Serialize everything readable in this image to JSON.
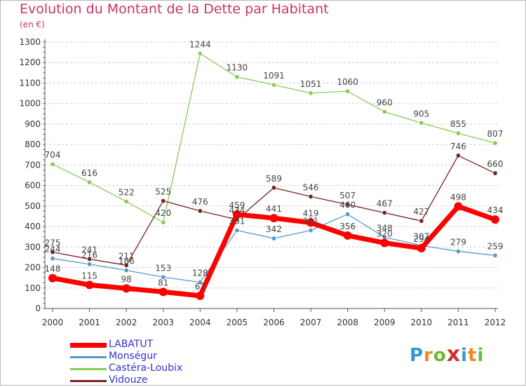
{
  "header": {
    "title": "Evolution du Montant de la Dette par Habitant",
    "subtitle": "(en €)"
  },
  "logo": {
    "letters": [
      "P",
      "r",
      "o",
      "x",
      "i",
      "t",
      "i"
    ],
    "colors": [
      "#3399cc",
      "#ee8822",
      "#66bb33",
      "#cc3333",
      "#3399cc",
      "#ee8822",
      "#66bb33"
    ]
  },
  "chart_data": {
    "type": "line",
    "title": "Evolution du Montant de la Dette par Habitant",
    "ylabel": "(en €)",
    "xlabel": "",
    "x": [
      "2000",
      "2001",
      "2002",
      "2003",
      "2004",
      "2005",
      "2006",
      "2007",
      "2008",
      "2009",
      "2010",
      "2011",
      "2012"
    ],
    "ylim": [
      0,
      1300
    ],
    "yticks": [
      0,
      100,
      200,
      300,
      400,
      500,
      600,
      700,
      800,
      900,
      1000,
      1100,
      1200,
      1300
    ],
    "grid": "horizontal dashed",
    "legend_position": "bottom-left",
    "series": [
      {
        "name": "LABATUT",
        "color": "#ff0000",
        "values": [
          148,
          115,
          98,
          81,
          62,
          459,
          441,
          419,
          356,
          320,
          294,
          498,
          434
        ]
      },
      {
        "name": "Monségur",
        "color": "#5599cc",
        "values": [
          244,
          216,
          186,
          153,
          128,
          381,
          342,
          381,
          460,
          348,
          307,
          279,
          259
        ]
      },
      {
        "name": "Castéra-Loubix",
        "color": "#88cc55",
        "values": [
          704,
          616,
          522,
          420,
          1244,
          1130,
          1091,
          1051,
          1060,
          960,
          905,
          855,
          807
        ]
      },
      {
        "name": "Vidouze",
        "color": "#772222",
        "values": [
          275,
          241,
          211,
          525,
          476,
          434,
          589,
          546,
          507,
          467,
          427,
          746,
          660
        ]
      }
    ]
  }
}
